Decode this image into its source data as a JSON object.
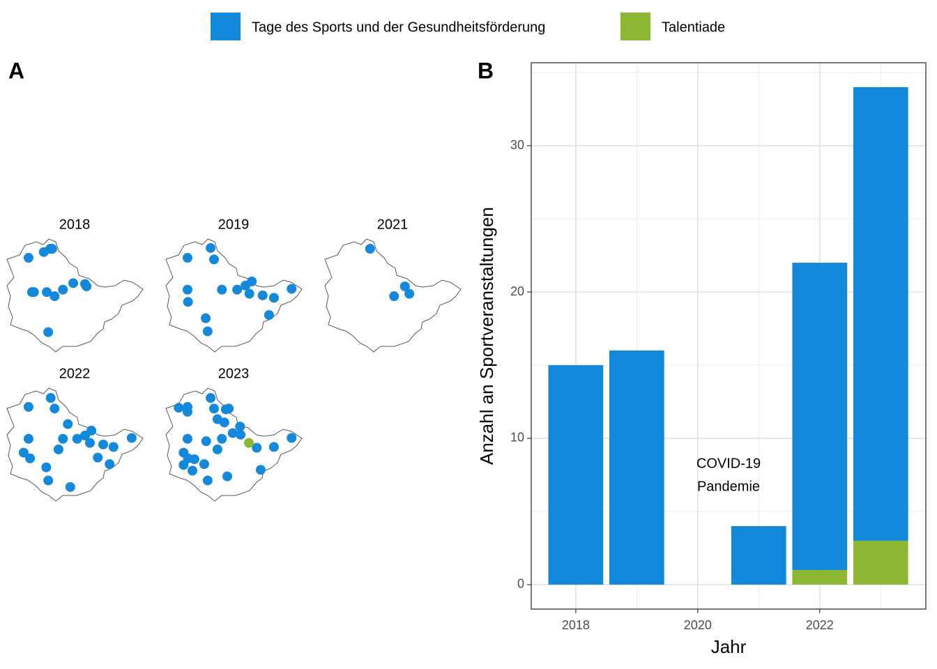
{
  "chart_data": [
    {
      "type": "map",
      "label": "A",
      "colors": [
        "#1389dc",
        "#8db733"
      ],
      "panels": [
        {
          "title": "2018",
          "series": [
            {
              "lon": [
                10.32,
                10.63,
                10.76,
                10.8,
                10.39,
                10.43,
                10.69,
                10.85,
                11.02,
                11.23,
                11.47,
                11.5,
                10.72
              ],
              "lat": [
                51.48,
                51.55,
                51.59,
                51.59,
                51.06,
                51.06,
                51.06,
                51.01,
                51.09,
                51.17,
                51.16,
                51.13,
                50.57
              ]
            }
          ]
        },
        {
          "title": "2019",
          "series": [
            {
              "lon": [
                10.32,
                10.79,
                10.86,
                10.32,
                10.33,
                11.02,
                11.33,
                11.5,
                11.63,
                11.58,
                11.85,
                12.08,
                12.44,
                11.98,
                10.69,
                10.73
              ],
              "lat": [
                51.48,
                51.6,
                51.46,
                51.09,
                50.94,
                51.09,
                51.09,
                51.14,
                51.19,
                51.04,
                51.02,
                50.99,
                51.1,
                50.78,
                50.74,
                50.58
              ]
            }
          ]
        },
        {
          "title": "2021",
          "series": [
            {
              "lon": [
                10.8,
                11.51,
                11.29,
                11.6
              ],
              "lat": [
                51.59,
                51.13,
                51.01,
                51.04
              ]
            }
          ]
        },
        {
          "title": "2022",
          "series": [
            {
              "lon": [
                10.32,
                10.77,
                10.85,
                11.12,
                10.32,
                11.02,
                11.31,
                11.47,
                11.6,
                11.57,
                11.84,
                12.05,
                12.42,
                10.22,
                10.35,
                10.93,
                11.73,
                11.97,
                10.68,
                10.72,
                11.17
              ],
              "lat": [
                51.48,
                51.59,
                51.46,
                51.27,
                51.09,
                51.09,
                51.09,
                51.13,
                51.19,
                51.04,
                51.02,
                50.99,
                51.1,
                50.92,
                50.85,
                50.96,
                50.86,
                50.78,
                50.74,
                50.58,
                50.5
              ]
            }
          ]
        },
        {
          "title": "2023",
          "series": [
            {
              "lon": [
                10.14,
                10.32,
                10.32,
                10.79,
                10.86,
                11.1,
                11.16,
                10.93,
                11.07,
                11.39,
                11.24,
                11.4,
                12.44,
                12.08,
                11.73,
                10.32,
                10.7,
                11.02,
                10.93,
                10.24,
                10.33,
                10.46,
                10.24,
                10.66,
                10.42,
                10.73,
                11.13,
                11.81
              ],
              "lat": [
                51.47,
                51.48,
                51.42,
                51.59,
                51.46,
                51.45,
                51.46,
                51.33,
                51.29,
                51.24,
                51.16,
                51.14,
                51.1,
                50.99,
                50.98,
                51.09,
                51.06,
                51.09,
                50.96,
                50.92,
                50.85,
                50.84,
                50.77,
                50.78,
                50.7,
                50.58,
                50.63,
                50.71
              ]
            },
            {
              "lon": [
                11.57
              ],
              "lat": [
                51.04
              ]
            }
          ]
        }
      ]
    },
    {
      "type": "bar",
      "stacked": true,
      "label": "B",
      "x": [
        2018,
        2019,
        2021,
        2022,
        2023
      ],
      "series": [
        {
          "name": "Tage des Sports und der Gesundheitsförderung",
          "color": "#1389dc",
          "values": [
            15,
            16,
            4,
            21,
            31
          ]
        },
        {
          "name": "Talentiade",
          "color": "#8db733",
          "values": [
            0,
            0,
            0,
            1,
            3
          ]
        }
      ],
      "xlim": [
        2017.27,
        2023.74
      ],
      "xticks": [
        2018,
        2020,
        2022
      ],
      "ylim": [
        -1.67,
        35.67
      ],
      "yticks": [
        0,
        10,
        20,
        30
      ],
      "grid": true,
      "minor_grid": true,
      "xlabel": "Jahr",
      "ylabel": "Anzahl an Sportveranstaltungen",
      "annotation": [
        "COVID-19",
        "Pandemie"
      ],
      "legend": "top"
    }
  ]
}
